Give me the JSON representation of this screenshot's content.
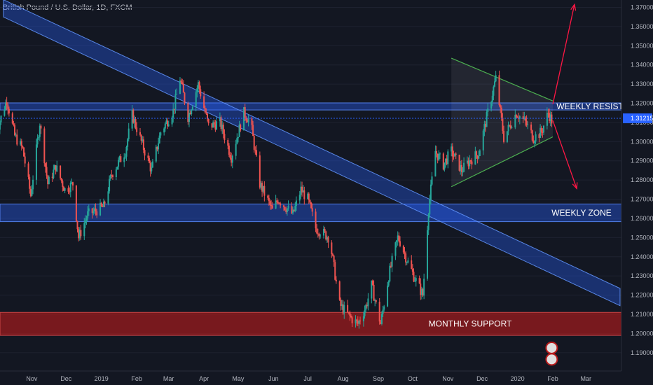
{
  "header": {
    "title": "British Pound / U.S. Dollar, 1D, FXCM"
  },
  "colors": {
    "background": "#131722",
    "up": "#26a69a",
    "down": "#ef5350",
    "band_blue": "#2962ff",
    "band_red": "#b71c1c",
    "triangle": "#4caf50",
    "arrow": "#ff1744",
    "last_price": "#2962ff"
  },
  "chart_data": {
    "type": "candlestick",
    "title": "British Pound / U.S. Dollar, 1D, FXCM",
    "ylim": [
      1.183,
      1.372
    ],
    "y_ticks": [
      "1.19000",
      "1.20000",
      "1.21000",
      "1.22000",
      "1.23000",
      "1.24000",
      "1.25000",
      "1.26000",
      "1.27000",
      "1.28000",
      "1.29000",
      "1.30000",
      "1.31000",
      "1.32000",
      "1.33000",
      "1.34000",
      "1.35000",
      "1.36000",
      "1.37000"
    ],
    "x_ticks": [
      "Nov",
      "Dec",
      "2019",
      "Feb",
      "Mar",
      "Apr",
      "May",
      "Jun",
      "Jul",
      "Aug",
      "Sep",
      "Oct",
      "Nov",
      "Dec",
      "2020",
      "Feb",
      "Mar"
    ],
    "x_range": [
      "2018-10-01",
      "2020-03-31"
    ],
    "last_price": "1.31215",
    "path": [
      [
        "2018-10-01",
        1.305
      ],
      [
        "2018-10-10",
        1.322
      ],
      [
        "2018-10-17",
        1.303
      ],
      [
        "2018-10-24",
        1.296
      ],
      [
        "2018-10-31",
        1.272
      ],
      [
        "2018-11-08",
        1.31
      ],
      [
        "2018-11-15",
        1.278
      ],
      [
        "2018-11-22",
        1.287
      ],
      [
        "2018-11-30",
        1.275
      ],
      [
        "2018-12-07",
        1.278
      ],
      [
        "2018-12-12",
        1.25
      ],
      [
        "2018-12-20",
        1.262
      ],
      [
        "2019-01-03",
        1.266
      ],
      [
        "2019-01-10",
        1.283
      ],
      [
        "2019-01-22",
        1.295
      ],
      [
        "2019-01-28",
        1.314
      ],
      [
        "2019-02-05",
        1.3
      ],
      [
        "2019-02-14",
        1.285
      ],
      [
        "2019-02-22",
        1.305
      ],
      [
        "2019-03-05",
        1.316
      ],
      [
        "2019-03-11",
        1.333
      ],
      [
        "2019-03-18",
        1.313
      ],
      [
        "2019-03-27",
        1.33
      ],
      [
        "2019-04-05",
        1.308
      ],
      [
        "2019-04-15",
        1.31
      ],
      [
        "2019-04-25",
        1.292
      ],
      [
        "2019-05-06",
        1.315
      ],
      [
        "2019-05-12",
        1.31
      ],
      [
        "2019-05-20",
        1.278
      ],
      [
        "2019-05-31",
        1.264
      ],
      [
        "2019-06-05",
        1.27
      ],
      [
        "2019-06-18",
        1.262
      ],
      [
        "2019-06-25",
        1.275
      ],
      [
        "2019-07-01",
        1.27
      ],
      [
        "2019-07-08",
        1.255
      ],
      [
        "2019-07-20",
        1.25
      ],
      [
        "2019-07-29",
        1.215
      ],
      [
        "2019-08-08",
        1.208
      ],
      [
        "2019-08-14",
        1.205
      ],
      [
        "2019-08-21",
        1.214
      ],
      [
        "2019-08-26",
        1.225
      ],
      [
        "2019-09-03",
        1.205
      ],
      [
        "2019-09-10",
        1.23
      ],
      [
        "2019-09-18",
        1.25
      ],
      [
        "2019-09-20",
        1.248
      ],
      [
        "2019-09-25",
        1.24
      ],
      [
        "2019-10-02",
        1.23
      ],
      [
        "2019-10-10",
        1.22
      ],
      [
        "2019-10-15",
        1.265
      ],
      [
        "2019-10-21",
        1.295
      ],
      [
        "2019-10-28",
        1.288
      ],
      [
        "2019-11-04",
        1.295
      ],
      [
        "2019-11-13",
        1.285
      ],
      [
        "2019-11-20",
        1.29
      ],
      [
        "2019-11-28",
        1.294
      ],
      [
        "2019-12-04",
        1.31
      ],
      [
        "2019-12-13",
        1.333
      ],
      [
        "2019-12-20",
        1.302
      ],
      [
        "2019-12-31",
        1.315
      ],
      [
        "2020-01-08",
        1.31
      ],
      [
        "2020-01-15",
        1.302
      ],
      [
        "2020-01-22",
        1.305
      ],
      [
        "2020-01-28",
        1.315
      ],
      [
        "2020-01-31",
        1.311
      ]
    ],
    "zones": [
      {
        "label": "WEEKLY RESIST.",
        "low": 1.3165,
        "high": 1.3202,
        "style": "blue"
      },
      {
        "label": "WEEKLY ZONE",
        "low": 1.2583,
        "high": 1.2675,
        "style": "blue"
      },
      {
        "label": "MONTHLY SUPPORT",
        "low": 1.199,
        "high": 1.211,
        "style": "red"
      }
    ],
    "channel": {
      "start": [
        "2018-10-07",
        1.374
      ],
      "end": [
        "2020-03-31",
        1.2235
      ],
      "height": 0.009
    },
    "triangle": {
      "top": [
        [
          "2019-11-04",
          1.3435
        ],
        [
          "2020-02-01",
          1.3212
        ]
      ],
      "bottom": [
        [
          "2019-11-04",
          1.2765
        ],
        [
          "2020-02-01",
          1.3025
        ]
      ]
    },
    "arrows": [
      {
        "from": [
          "2020-02-01",
          1.3195
        ],
        "to": [
          "2020-02-20",
          1.3715
        ]
      },
      {
        "from": [
          "2020-02-01",
          1.311
        ],
        "to": [
          "2020-02-22",
          1.2755
        ]
      }
    ]
  }
}
